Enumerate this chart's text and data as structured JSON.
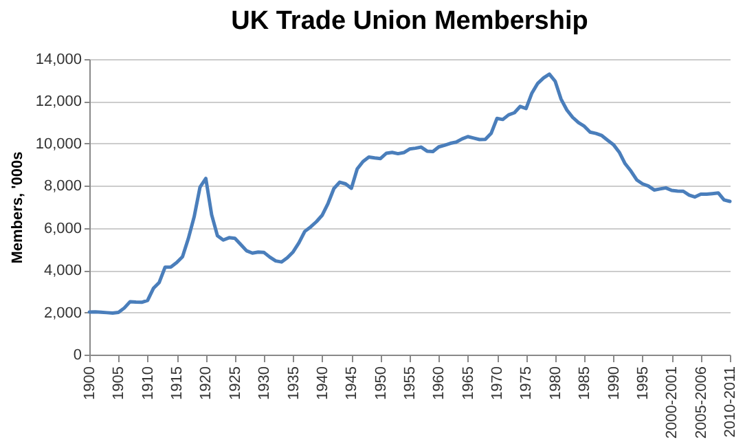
{
  "chart_data": {
    "type": "line",
    "title": "UK Trade Union Membership",
    "ylabel": "Members, '000s",
    "x": [
      1900,
      1901,
      1902,
      1903,
      1904,
      1905,
      1906,
      1907,
      1908,
      1909,
      1910,
      1911,
      1912,
      1913,
      1914,
      1915,
      1916,
      1917,
      1918,
      1919,
      1920,
      1921,
      1922,
      1923,
      1924,
      1925,
      1926,
      1927,
      1928,
      1929,
      1930,
      1931,
      1932,
      1933,
      1934,
      1935,
      1936,
      1937,
      1938,
      1939,
      1940,
      1941,
      1942,
      1943,
      1944,
      1945,
      1946,
      1947,
      1948,
      1949,
      1950,
      1951,
      1952,
      1953,
      1954,
      1955,
      1956,
      1957,
      1958,
      1959,
      1960,
      1961,
      1962,
      1963,
      1964,
      1965,
      1966,
      1967,
      1968,
      1969,
      1970,
      1971,
      1972,
      1973,
      1974,
      1975,
      1976,
      1977,
      1978,
      1979,
      1980,
      1981,
      1982,
      1983,
      1984,
      1985,
      1986,
      1987,
      1988,
      1989,
      1990,
      1991,
      1992,
      1993,
      1994,
      1995,
      1996,
      1997,
      1998,
      1999,
      2000,
      2001,
      2002,
      2003,
      2004,
      2005,
      2006,
      2007,
      2008,
      2009,
      2010
    ],
    "series": [
      {
        "color": "#4a7ebb",
        "values": [
          2020,
          2030,
          2010,
          1990,
          1970,
          2000,
          2210,
          2510,
          2490,
          2480,
          2570,
          3140,
          3420,
          4140,
          4150,
          4360,
          4640,
          5500,
          6530,
          7930,
          8350,
          6630,
          5630,
          5430,
          5540,
          5510,
          5220,
          4920,
          4810,
          4860,
          4840,
          4620,
          4440,
          4390,
          4590,
          4870,
          5300,
          5840,
          6050,
          6300,
          6610,
          7170,
          7870,
          8170,
          8090,
          7880,
          8800,
          9150,
          9360,
          9320,
          9290,
          9540,
          9580,
          9520,
          9570,
          9740,
          9780,
          9830,
          9640,
          9620,
          9840,
          9920,
          10010,
          10070,
          10220,
          10330,
          10260,
          10190,
          10200,
          10480,
          11190,
          11140,
          11360,
          11460,
          11760,
          11660,
          12390,
          12850,
          13110,
          13290,
          12950,
          12110,
          11590,
          11240,
          10990,
          10820,
          10540,
          10480,
          10380,
          10160,
          9950,
          9590,
          9050,
          8700,
          8280,
          8090,
          7990,
          7800,
          7850,
          7900,
          7780,
          7750,
          7740,
          7560,
          7470,
          7600,
          7600,
          7630,
          7660,
          7330,
          7260
        ]
      }
    ],
    "xlim": [
      1900,
      2010
    ],
    "xticks": [
      1900,
      1905,
      1910,
      1915,
      1920,
      1925,
      1930,
      1935,
      1940,
      1945,
      1950,
      1955,
      1960,
      1965,
      1970,
      1975,
      1980,
      1985,
      1990,
      1995,
      {
        "value": 2000,
        "label": "2000-2001"
      },
      {
        "value": 2005,
        "label": "2005-2006"
      },
      {
        "value": 2010,
        "label": "2010-2011"
      }
    ],
    "ylim": [
      0,
      14000
    ],
    "yticks": [
      0,
      {
        "value": 2000,
        "label": "2,000"
      },
      {
        "value": 4000,
        "label": "4,000"
      },
      {
        "value": 6000,
        "label": "6,000"
      },
      {
        "value": 8000,
        "label": "8,000"
      },
      {
        "value": 10000,
        "label": "10,000"
      },
      {
        "value": 12000,
        "label": "12,000"
      },
      {
        "value": 14000,
        "label": "14,000"
      }
    ],
    "grid": "y",
    "line_style": "solid",
    "marker": "none"
  }
}
